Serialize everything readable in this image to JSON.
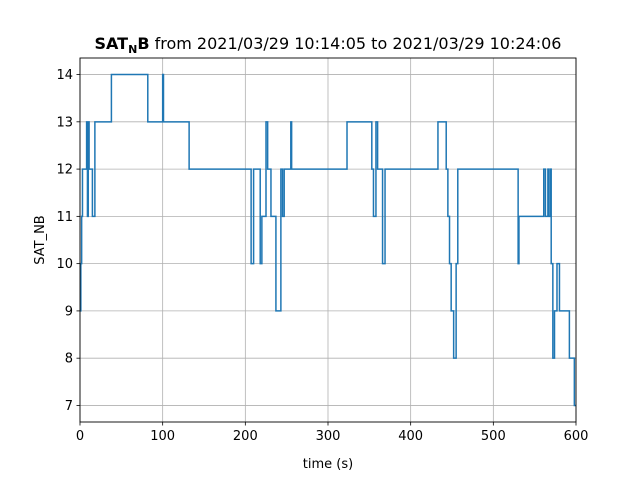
{
  "chart_data": {
    "type": "line",
    "step": true,
    "title": {
      "var_main": "SAT",
      "var_sub": "N",
      "var_end": "B",
      "rest": " from 2021/03/29 10:14:05 to 2021/03/29 10:24:06"
    },
    "xlabel": "time (s)",
    "ylabel": "SAT_NB",
    "xlim": [
      0,
      600
    ],
    "ylim": [
      6.65,
      14.35
    ],
    "xticks": [
      0,
      100,
      200,
      300,
      400,
      500,
      600
    ],
    "yticks": [
      7,
      8,
      9,
      10,
      11,
      12,
      13,
      14
    ],
    "grid": true,
    "series": [
      {
        "color": "#1f77b4",
        "x": [
          0,
          1,
          2,
          3,
          8,
          9,
          10,
          11,
          15,
          18,
          38,
          82,
          100,
          101,
          103,
          132,
          205,
          207,
          210,
          213,
          218,
          220,
          225,
          227,
          231,
          237,
          243,
          245,
          247,
          249,
          255,
          256,
          258,
          323,
          353,
          355,
          358,
          360,
          366,
          369,
          433,
          443,
          445,
          447,
          449,
          452,
          455,
          457,
          459,
          468,
          530,
          531,
          536,
          561,
          563,
          566,
          567,
          569,
          570,
          572,
          574,
          577,
          580,
          585,
          592,
          598,
          600
        ],
        "y": [
          9,
          10,
          11,
          12,
          13,
          11,
          13,
          12,
          11,
          13,
          14,
          13,
          14,
          13,
          13,
          12,
          12,
          10,
          12,
          12,
          10,
          11,
          13,
          12,
          11,
          9,
          12,
          11,
          12,
          12,
          13,
          12,
          12,
          13,
          12,
          11,
          13,
          12,
          10,
          12,
          13,
          12,
          11,
          10,
          9,
          8,
          10,
          12,
          12,
          12,
          10,
          11,
          11,
          12,
          11,
          12,
          11,
          12,
          10,
          8,
          9,
          10,
          9,
          9,
          8,
          7,
          7
        ]
      }
    ]
  }
}
